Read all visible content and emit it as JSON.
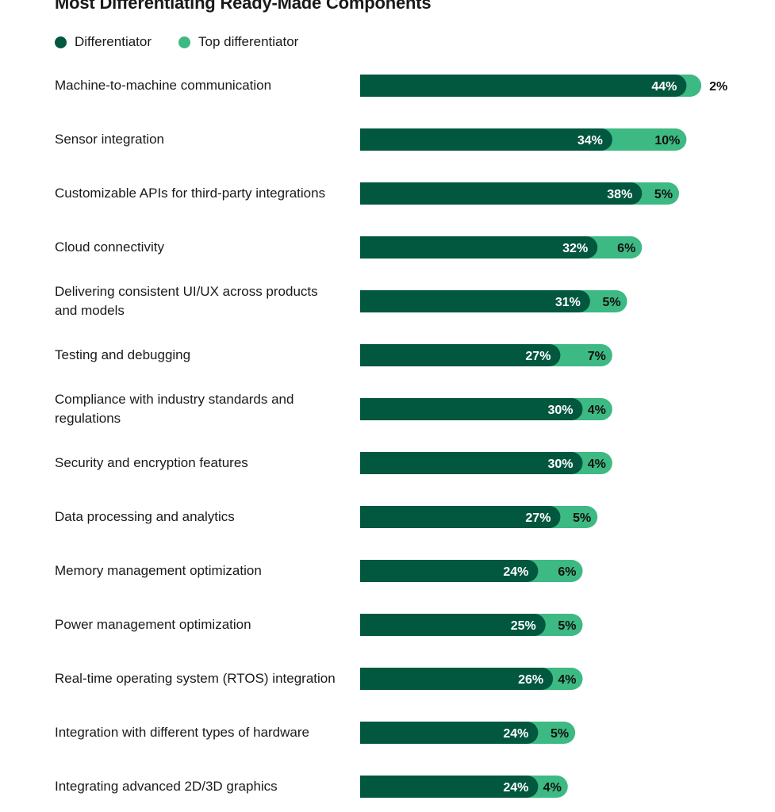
{
  "chart_data": {
    "type": "bar",
    "orientation": "horizontal",
    "stacked": true,
    "title": "Most Differentiating Ready-Made Components",
    "legend_position": "top-left",
    "grid": false,
    "unit": "%",
    "colors": {
      "Differentiator": "#02573f",
      "Top differentiator": "#3db983"
    },
    "categories": [
      "Machine-to-machine communication",
      "Sensor integration",
      "Customizable APIs for third-party integrations",
      "Cloud connectivity",
      "Delivering consistent UI/UX across products and models",
      "Testing and debugging",
      "Compliance with industry standards and regulations",
      "Security and encryption features",
      "Data processing and analytics",
      "Memory management optimization",
      "Power management optimization",
      "Real-time operating system (RTOS) integration",
      "Integration with different types of hardware",
      "Integrating advanced 2D/3D graphics"
    ],
    "series": [
      {
        "name": "Differentiator",
        "values": [
          44,
          34,
          38,
          32,
          31,
          27,
          30,
          30,
          27,
          24,
          25,
          26,
          24,
          24
        ]
      },
      {
        "name": "Top differentiator",
        "values": [
          2,
          10,
          5,
          6,
          5,
          7,
          4,
          4,
          5,
          6,
          5,
          4,
          5,
          4
        ]
      }
    ]
  }
}
